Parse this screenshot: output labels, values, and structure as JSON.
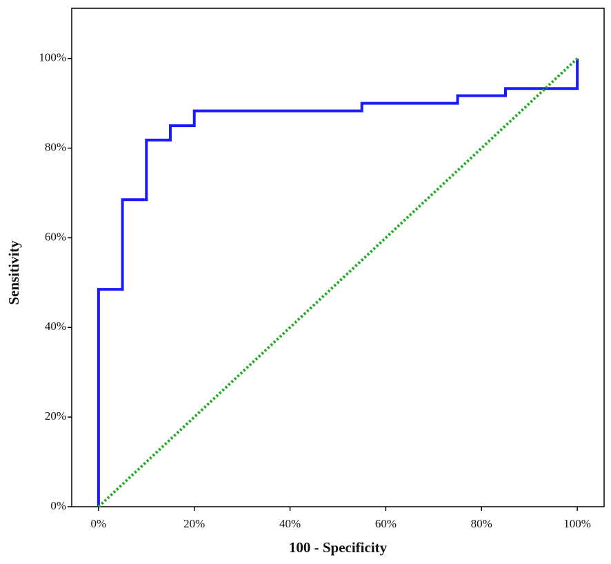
{
  "chart_data": {
    "type": "line",
    "x_label": "100 - Specificity",
    "y_label": "Sensitivity",
    "xlim": [
      -5.6,
      105.6
    ],
    "ylim": [
      0,
      111.2
    ],
    "xticks": [
      {
        "value": 0,
        "label": "0%"
      },
      {
        "value": 20,
        "label": "20%"
      },
      {
        "value": 40,
        "label": "40%"
      },
      {
        "value": 60,
        "label": "60%"
      },
      {
        "value": 80,
        "label": "80%"
      },
      {
        "value": 100,
        "label": "100%"
      }
    ],
    "yticks": [
      {
        "value": 0,
        "label": "0%"
      },
      {
        "value": 20,
        "label": "20%"
      },
      {
        "value": 40,
        "label": "40%"
      },
      {
        "value": 60,
        "label": "60%"
      },
      {
        "value": 80,
        "label": "80%"
      },
      {
        "value": 100,
        "label": "100%"
      }
    ],
    "series": [
      {
        "color": "#1a1aff",
        "style": "solid",
        "x": [
          0,
          0,
          5,
          5,
          10,
          10,
          15,
          15,
          20,
          20,
          55,
          55,
          75,
          75,
          85,
          85,
          100,
          100
        ],
        "values": [
          0,
          48.5,
          48.5,
          68.5,
          68.5,
          81.8,
          81.8,
          85,
          85,
          88.3,
          88.3,
          90,
          90,
          91.7,
          91.7,
          93.3,
          93.3,
          100
        ]
      },
      {
        "color": "#22aa22",
        "style": "dotted",
        "x": [
          0,
          100
        ],
        "values": [
          0,
          100
        ]
      }
    ]
  }
}
